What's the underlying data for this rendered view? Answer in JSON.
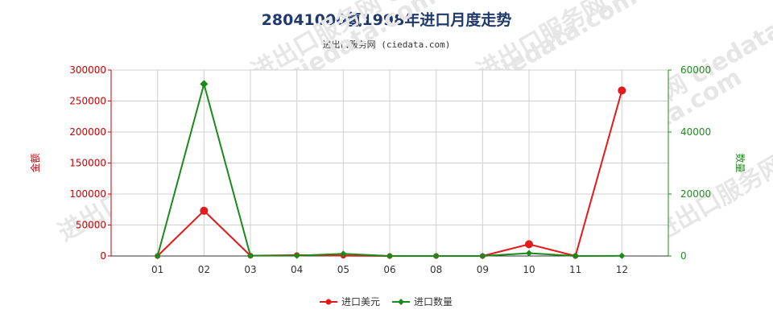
{
  "title": "28041000氢1998年进口月度走势",
  "subtitle": "进出口服务网 (ciedata.com)",
  "watermark": "进出口服务网 ciedata.com",
  "chart_data": {
    "type": "line",
    "categories": [
      "01",
      "02",
      "03",
      "04",
      "05",
      "06",
      "08",
      "09",
      "10",
      "11",
      "12"
    ],
    "series": [
      {
        "name": "进口美元",
        "axis": "left",
        "color": "#e31a1c",
        "marker": "circle",
        "values": [
          0,
          73000,
          500,
          1500,
          500,
          0,
          0,
          0,
          19000,
          0,
          267000
        ]
      },
      {
        "name": "进口数量",
        "axis": "right",
        "color": "#1a8a1a",
        "marker": "diamond",
        "values": [
          0,
          55500,
          100,
          100,
          700,
          0,
          0,
          0,
          900,
          0,
          50
        ]
      }
    ],
    "ylabel_left": "金额",
    "ylabel_right": "数量",
    "ylim_left": [
      0,
      300000
    ],
    "ylim_right": [
      0,
      60000
    ],
    "yticks_left": [
      "0",
      "50000",
      "100000",
      "150000",
      "200000",
      "250000",
      "300000"
    ],
    "yticks_right": [
      "0",
      "20000",
      "40000",
      "60000"
    ],
    "grid": true,
    "legend_position": "bottom"
  }
}
